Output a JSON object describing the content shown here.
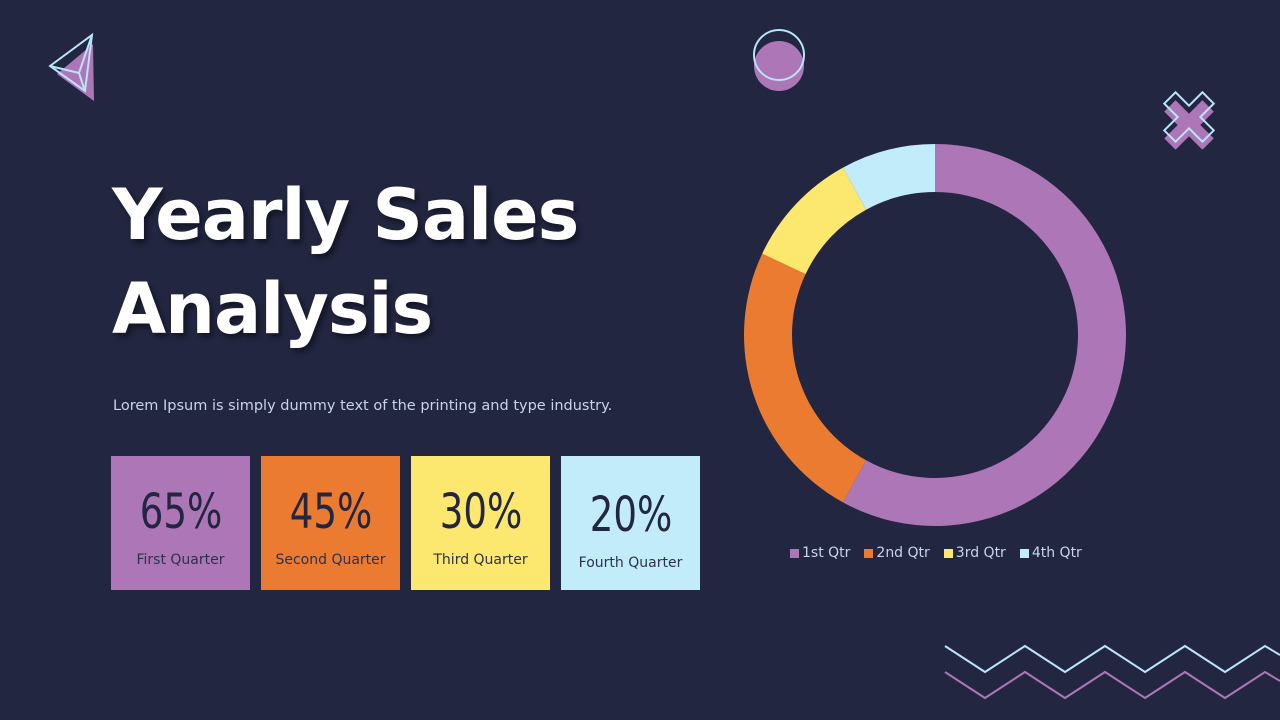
{
  "slide": {
    "title_line1": "Yearly Sales",
    "title_line2": "Analysis",
    "subtitle": "Lorem Ipsum is simply dummy text of the printing and type industry."
  },
  "cards": [
    {
      "value": "65%",
      "label": "First Quarter",
      "color": "#ad76b7"
    },
    {
      "value": "45%",
      "label": "Second Quarter",
      "color": "#ea7b30"
    },
    {
      "value": "30%",
      "label": "Third Quarter",
      "color": "#fde86f"
    },
    {
      "value": "20%",
      "label": "Fourth Quarter",
      "color": "#c3ecfa"
    }
  ],
  "colors": {
    "background": "#222641",
    "q1": "#ad76b7",
    "q2": "#ea7b30",
    "q3": "#fde86f",
    "q4": "#c3ecfa",
    "outline": "#b9e4fa"
  },
  "chart_data": {
    "type": "pie",
    "style": "donut",
    "categories": [
      "1st Qtr",
      "2nd Qtr",
      "3rd Qtr",
      "4th Qtr"
    ],
    "values": [
      58,
      24,
      10,
      8
    ],
    "colors": [
      "#ad76b7",
      "#ea7b30",
      "#fde86f",
      "#c3ecfa"
    ],
    "legend_position": "bottom"
  },
  "decorations": [
    "paper-plane-icon",
    "circle-icon",
    "x-cross-icon",
    "zigzag-lines"
  ]
}
